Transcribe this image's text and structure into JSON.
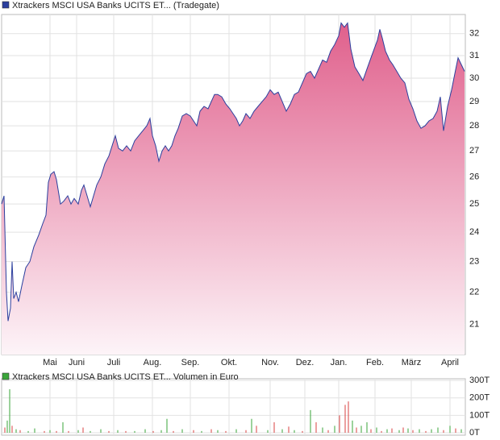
{
  "chart_data": [
    {
      "type": "area",
      "title": "Xtrackers MSCI USA Banks UCITS ET... (Tradegate)",
      "color": "#2b3f9e",
      "fill_top": "#e0608c",
      "fill_bottom": "#fdf4f8",
      "log_scale": true,
      "grid": true,
      "xlim": [
        0,
        575
      ],
      "xticks": [
        {
          "value": 60,
          "label": "Mai"
        },
        {
          "value": 93,
          "label": "Juni"
        },
        {
          "value": 139,
          "label": "Juli"
        },
        {
          "value": 187,
          "label": "Aug."
        },
        {
          "value": 234,
          "label": "Sep."
        },
        {
          "value": 282,
          "label": "Okt."
        },
        {
          "value": 333,
          "label": "Nov."
        },
        {
          "value": 376,
          "label": "Dez."
        },
        {
          "value": 418,
          "label": "Jan."
        },
        {
          "value": 463,
          "label": "Feb."
        },
        {
          "value": 508,
          "label": "März"
        },
        {
          "value": 556,
          "label": "April"
        }
      ],
      "ylim": [
        20.1,
        32.9
      ],
      "yticks": [
        21,
        22,
        23,
        24,
        25,
        26,
        27,
        28,
        29,
        30,
        31,
        32
      ],
      "x": [
        0,
        3,
        6,
        8,
        11,
        13,
        15,
        18,
        21,
        25,
        30,
        35,
        40,
        46,
        51,
        55,
        58,
        61,
        65,
        68,
        73,
        77,
        82,
        86,
        90,
        95,
        99,
        102,
        106,
        110,
        114,
        118,
        123,
        128,
        133,
        138,
        141,
        145,
        150,
        155,
        160,
        165,
        170,
        175,
        180,
        184,
        187,
        191,
        195,
        199,
        203,
        207,
        211,
        215,
        219,
        224,
        229,
        234,
        238,
        242,
        246,
        251,
        256,
        260,
        264,
        268,
        273,
        278,
        283,
        287,
        291,
        295,
        299,
        303,
        308,
        313,
        318,
        323,
        328,
        333,
        338,
        343,
        348,
        353,
        358,
        363,
        368,
        373,
        378,
        383,
        388,
        393,
        398,
        403,
        408,
        413,
        418,
        421,
        425,
        429,
        433,
        438,
        443,
        448,
        453,
        458,
        463,
        466,
        469,
        472,
        476,
        481,
        485,
        490,
        495,
        500,
        505,
        510,
        515,
        520,
        525,
        530,
        535,
        540,
        544,
        548,
        553,
        558,
        562,
        566,
        570,
        574
      ],
      "values": [
        25.0,
        25.3,
        22.0,
        21.1,
        21.5,
        23.0,
        21.8,
        22.0,
        21.7,
        22.2,
        22.8,
        23.0,
        23.5,
        23.9,
        24.3,
        24.6,
        25.8,
        26.1,
        26.2,
        25.9,
        25.0,
        25.1,
        25.3,
        25.0,
        25.2,
        25.0,
        25.5,
        25.7,
        25.3,
        24.9,
        25.3,
        25.7,
        26.0,
        26.5,
        26.8,
        27.3,
        27.6,
        27.1,
        27.0,
        27.2,
        27.0,
        27.4,
        27.6,
        27.8,
        28.0,
        28.3,
        27.6,
        27.2,
        26.6,
        27.0,
        27.2,
        27.0,
        27.2,
        27.6,
        27.9,
        28.4,
        28.5,
        28.4,
        28.2,
        28.0,
        28.6,
        28.8,
        28.7,
        29.0,
        29.3,
        29.3,
        29.2,
        28.9,
        28.7,
        28.5,
        28.3,
        28.0,
        28.2,
        28.5,
        28.3,
        28.6,
        28.8,
        29.0,
        29.2,
        29.5,
        29.3,
        29.4,
        29.0,
        28.6,
        28.9,
        29.3,
        29.4,
        29.8,
        30.2,
        30.3,
        30.0,
        30.4,
        30.8,
        30.7,
        31.2,
        31.5,
        31.9,
        32.5,
        32.3,
        32.5,
        31.3,
        30.5,
        30.2,
        29.9,
        30.4,
        30.9,
        31.4,
        31.7,
        32.2,
        31.8,
        31.2,
        30.8,
        30.6,
        30.3,
        30.0,
        29.8,
        29.1,
        28.7,
        28.2,
        27.9,
        28.0,
        28.2,
        28.3,
        28.6,
        29.2,
        27.8,
        28.8,
        29.5,
        30.2,
        30.9,
        30.6,
        30.3
      ]
    },
    {
      "type": "bar",
      "title": "Xtrackers MSCI USA Banks UCITS ET... Volumen in Euro",
      "color": "#3aa63a",
      "grid": true,
      "xlim": [
        0,
        575
      ],
      "ylim": [
        0,
        310000
      ],
      "yticks": [
        {
          "value": 0,
          "label": "0T"
        },
        {
          "value": 100000,
          "label": "100T"
        },
        {
          "value": 200000,
          "label": "200T"
        },
        {
          "value": 300000,
          "label": "300T"
        }
      ],
      "x": [
        4,
        7,
        10,
        13,
        18,
        23,
        33,
        41,
        53,
        60,
        68,
        76,
        83,
        95,
        101,
        110,
        123,
        133,
        144,
        154,
        165,
        178,
        188,
        198,
        205,
        213,
        224,
        238,
        248,
        260,
        268,
        278,
        291,
        303,
        310,
        316,
        330,
        338,
        348,
        356,
        363,
        373,
        383,
        390,
        398,
        405,
        413,
        419,
        426,
        430,
        435,
        440,
        446,
        453,
        458,
        465,
        471,
        478,
        484,
        493,
        498,
        504,
        510,
        518,
        526,
        533,
        541,
        548,
        556,
        563,
        570
      ],
      "values": [
        30000,
        70000,
        250000,
        40000,
        20000,
        15000,
        10000,
        25000,
        10000,
        15000,
        10000,
        60000,
        10000,
        15000,
        30000,
        10000,
        20000,
        10000,
        15000,
        10000,
        10000,
        20000,
        10000,
        15000,
        80000,
        10000,
        20000,
        15000,
        10000,
        20000,
        15000,
        10000,
        20000,
        15000,
        80000,
        40000,
        15000,
        60000,
        20000,
        35000,
        15000,
        10000,
        130000,
        60000,
        30000,
        15000,
        40000,
        100000,
        160000,
        180000,
        70000,
        30000,
        40000,
        60000,
        20000,
        30000,
        10000,
        20000,
        25000,
        15000,
        30000,
        25000,
        15000,
        20000,
        10000,
        20000,
        30000,
        15000,
        40000,
        25000,
        20000
      ],
      "bar_colors": [
        "#d94040",
        "#3aa63a",
        "#3aa63a",
        "#d94040",
        "#3aa63a",
        "#d94040",
        "#3aa63a",
        "#3aa63a",
        "#d94040",
        "#3aa63a",
        "#d94040",
        "#3aa63a",
        "#d94040",
        "#3aa63a",
        "#d94040",
        "#3aa63a",
        "#3aa63a",
        "#d94040",
        "#3aa63a",
        "#d94040",
        "#3aa63a",
        "#3aa63a",
        "#d94040",
        "#3aa63a",
        "#3aa63a",
        "#d94040",
        "#3aa63a",
        "#d94040",
        "#3aa63a",
        "#d94040",
        "#3aa63a",
        "#d94040",
        "#3aa63a",
        "#d94040",
        "#3aa63a",
        "#d94040",
        "#3aa63a",
        "#d94040",
        "#3aa63a",
        "#d94040",
        "#3aa63a",
        "#d94040",
        "#3aa63a",
        "#d94040",
        "#3aa63a",
        "#d94040",
        "#3aa63a",
        "#d94040",
        "#d94040",
        "#d94040",
        "#3aa63a",
        "#d94040",
        "#3aa63a",
        "#3aa63a",
        "#d94040",
        "#3aa63a",
        "#d94040",
        "#3aa63a",
        "#d94040",
        "#3aa63a",
        "#d94040",
        "#3aa63a",
        "#d94040",
        "#3aa63a",
        "#d94040",
        "#3aa63a",
        "#3aa63a",
        "#d94040",
        "#3aa63a",
        "#d94040",
        "#3aa63a"
      ]
    }
  ]
}
